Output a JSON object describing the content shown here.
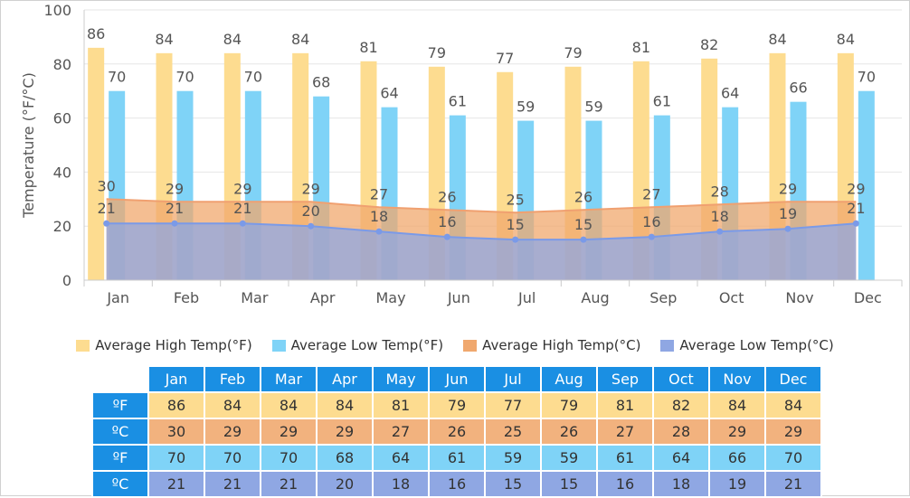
{
  "chart_data": {
    "type": "bar",
    "categories": [
      "Jan",
      "Feb",
      "Mar",
      "Apr",
      "May",
      "Jun",
      "Jul",
      "Aug",
      "Sep",
      "Oct",
      "Nov",
      "Dec"
    ],
    "ylabel": "Temperature (°F/°C)",
    "ylim": [
      0,
      100
    ],
    "yticks": [
      0,
      20,
      40,
      60,
      80,
      100
    ],
    "grid": true,
    "legend_position": "bottom",
    "series": [
      {
        "name": "Average High Temp(°F)",
        "kind": "bar",
        "color": "#fddc90",
        "values": [
          86,
          84,
          84,
          84,
          81,
          79,
          77,
          79,
          81,
          82,
          84,
          84
        ]
      },
      {
        "name": "Average Low Temp(°F)",
        "kind": "bar",
        "color": "#7fd3f7",
        "values": [
          70,
          70,
          70,
          68,
          64,
          61,
          59,
          59,
          61,
          64,
          66,
          70
        ]
      },
      {
        "name": "Average High Temp(°C)",
        "kind": "area",
        "color": "#f0a86e",
        "values": [
          30,
          29,
          29,
          29,
          27,
          26,
          25,
          26,
          27,
          28,
          29,
          29
        ]
      },
      {
        "name": "Average Low Temp(°C)",
        "kind": "area",
        "color": "#8fa7e3",
        "values": [
          21,
          21,
          21,
          20,
          18,
          16,
          15,
          15,
          16,
          18,
          19,
          21
        ]
      }
    ]
  },
  "table": {
    "months": [
      "Jan",
      "Feb",
      "Mar",
      "Apr",
      "May",
      "Jun",
      "Jul",
      "Aug",
      "Sep",
      "Oct",
      "Nov",
      "Dec"
    ],
    "rows": [
      {
        "unit": "ºF",
        "bg": "#fddc90",
        "values": [
          "86",
          "84",
          "84",
          "84",
          "81",
          "79",
          "77",
          "79",
          "81",
          "82",
          "84",
          "84"
        ]
      },
      {
        "unit": "ºC",
        "bg": "#f2b27e",
        "values": [
          "30",
          "29",
          "29",
          "29",
          "27",
          "26",
          "25",
          "26",
          "27",
          "28",
          "29",
          "29"
        ]
      },
      {
        "unit": "ºF",
        "bg": "#7fd3f7",
        "values": [
          "70",
          "70",
          "70",
          "68",
          "64",
          "61",
          "59",
          "59",
          "61",
          "64",
          "66",
          "70"
        ]
      },
      {
        "unit": "ºC",
        "bg": "#8fa7e3",
        "values": [
          "21",
          "21",
          "21",
          "20",
          "18",
          "16",
          "15",
          "15",
          "16",
          "18",
          "19",
          "21"
        ]
      }
    ]
  }
}
